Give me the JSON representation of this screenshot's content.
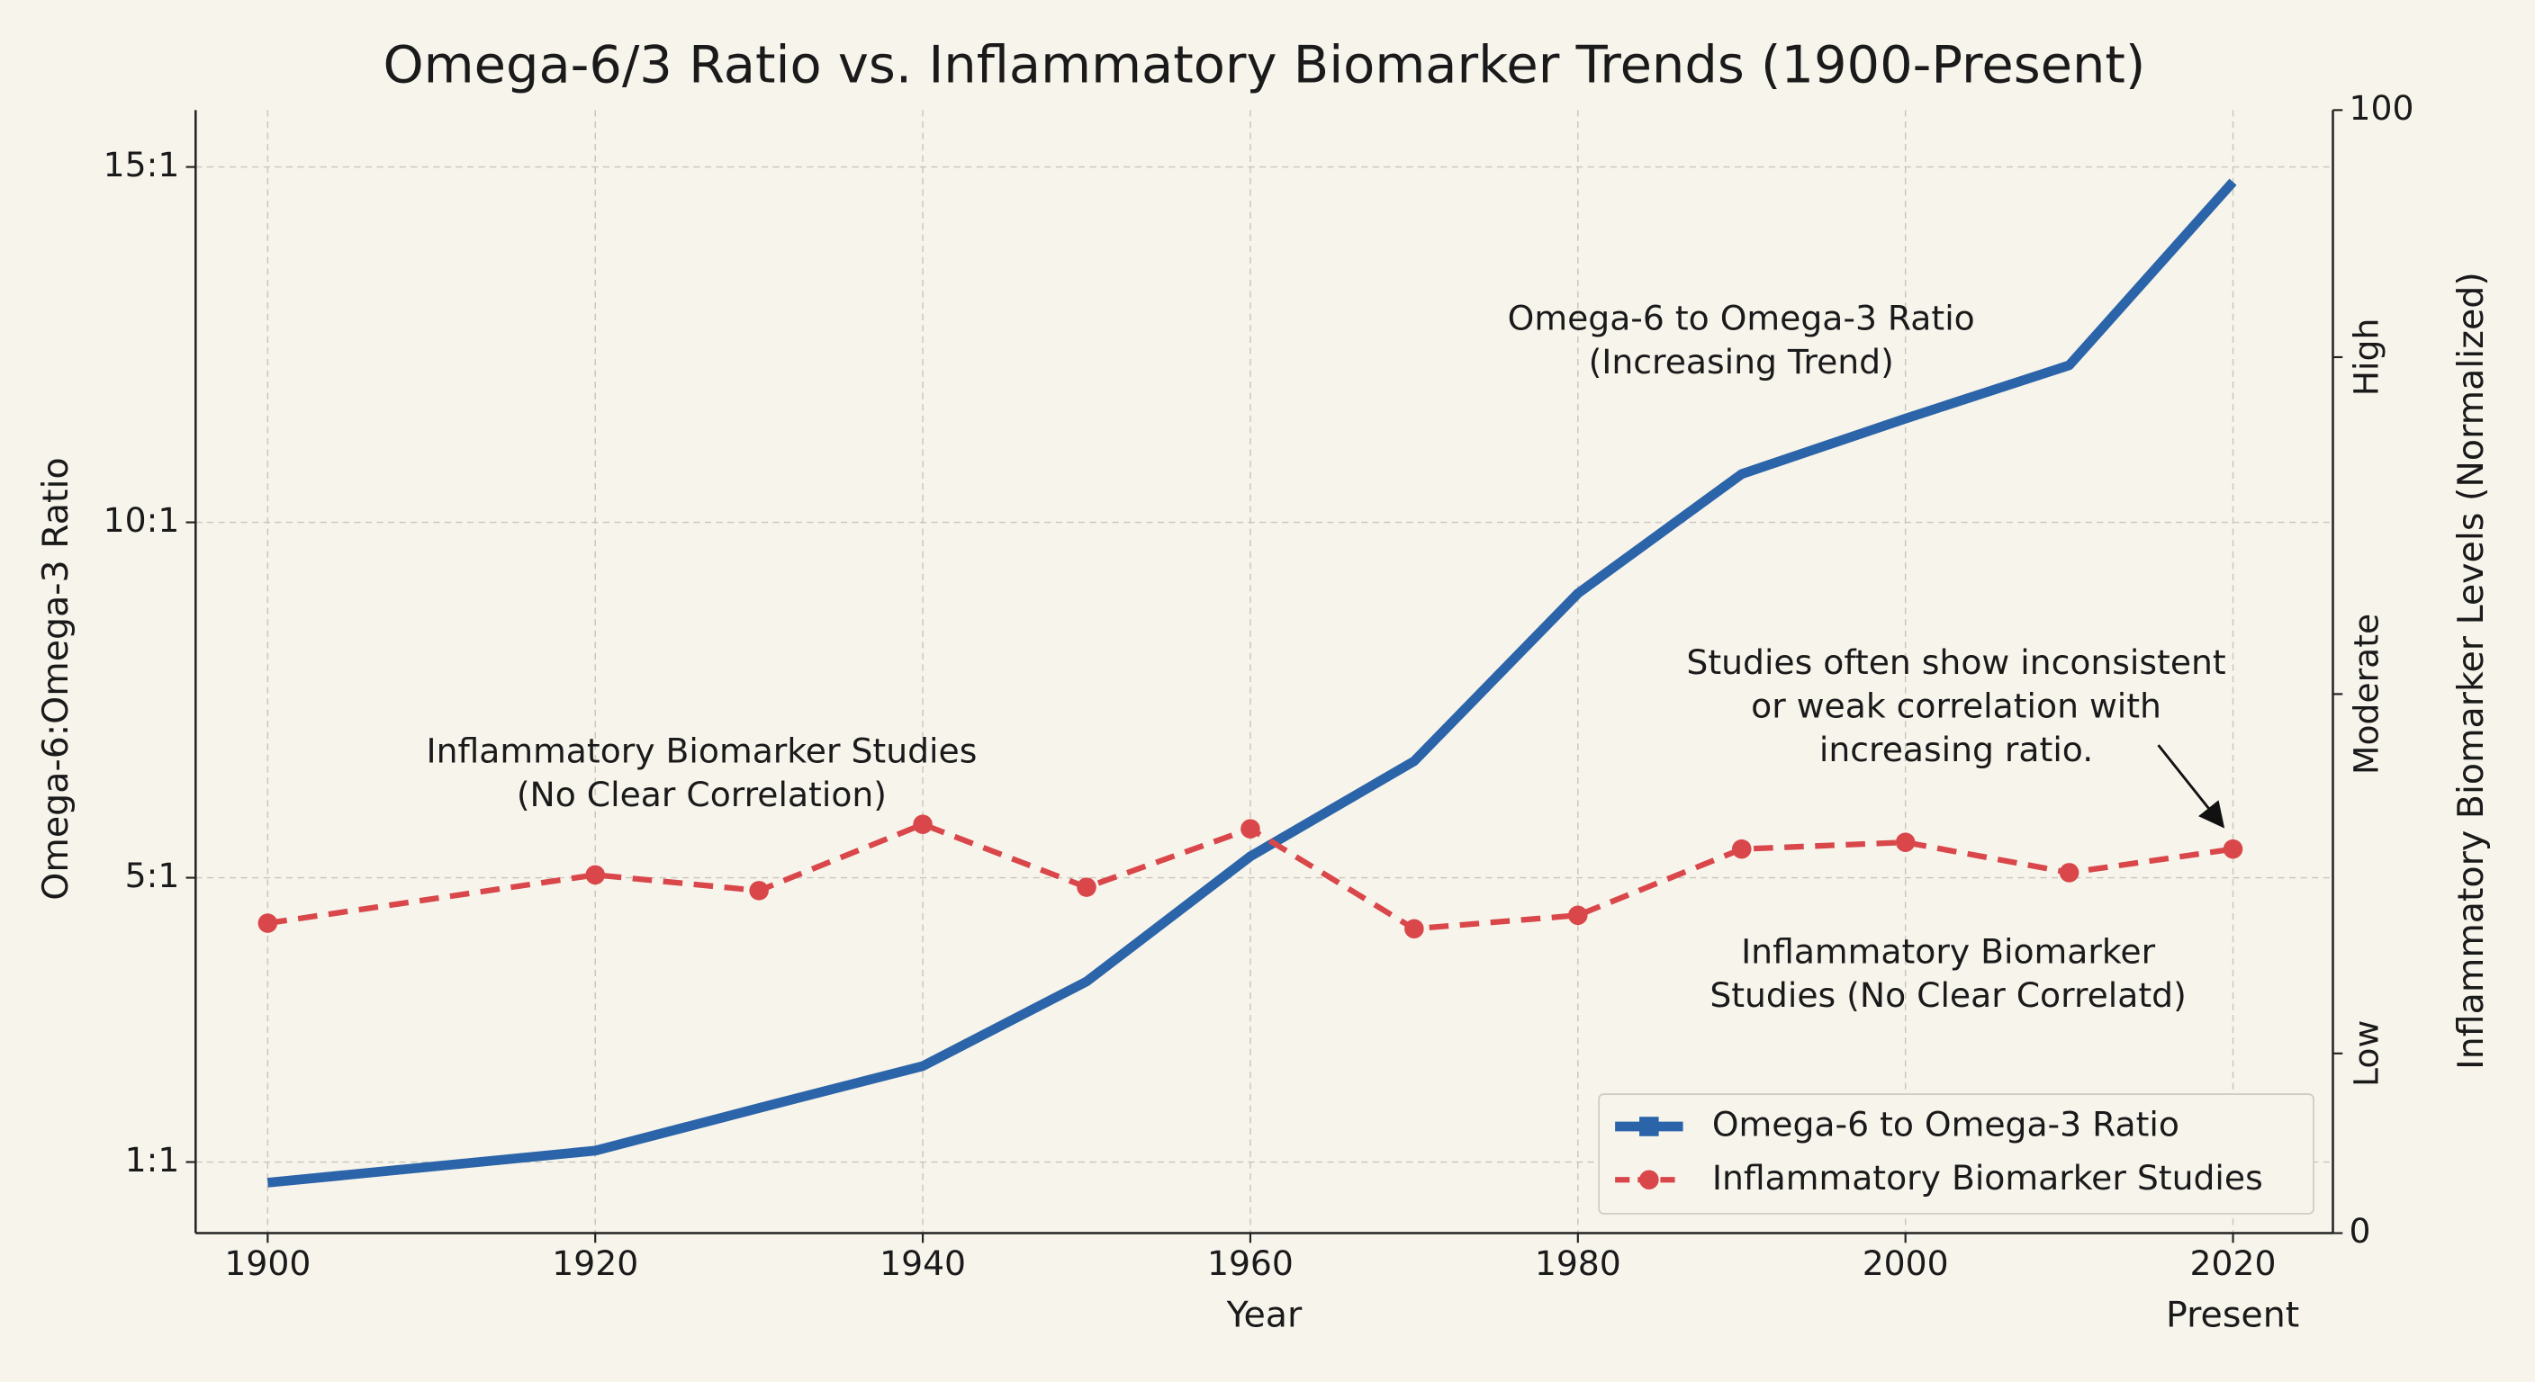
{
  "chart_data": {
    "type": "line",
    "title": "Omega-6/3 Ratio vs. Inflammatory Biomarker Trends (1900-Present)",
    "x_label": "Year",
    "x_extra_label": "Present",
    "y_label": "Omega-6:Omega-3 Ratio",
    "y2_label": "Inflammatory Biomarker Levels (Normalized)",
    "x": [
      1900,
      1920,
      1930,
      1940,
      1950,
      1960,
      1970,
      1980,
      1990,
      2000,
      2010,
      2020
    ],
    "xlim": [
      1895.6,
      2026.1
    ],
    "xticks": [
      1900,
      1920,
      1940,
      1960,
      1980,
      2000,
      2020
    ],
    "ylim": [
      0,
      15.8
    ],
    "yticks": [
      {
        "value": 1,
        "label": "1:1"
      },
      {
        "value": 5,
        "label": "5:1"
      },
      {
        "value": 10,
        "label": "10:1"
      },
      {
        "value": 15,
        "label": "15:1"
      }
    ],
    "y2lim": [
      0,
      100
    ],
    "y2ticks": [
      0,
      {
        "value": 16,
        "label": "Low"
      },
      {
        "value": 48,
        "label": "Moderate"
      },
      {
        "value": 78,
        "label": "High"
      },
      100
    ],
    "grid": true,
    "legend": "lower right",
    "series": [
      {
        "name": "Omega-6 to Omega-3 Ratio",
        "color": "#2b64a8",
        "style": "solid",
        "values": [
          0.71,
          1.16,
          1.76,
          2.35,
          3.54,
          5.3,
          6.64,
          9.0,
          10.68,
          11.46,
          12.21,
          14.79
        ]
      },
      {
        "name": "Inflammatory Biomarker Studies",
        "color": "#d9474a",
        "style": "dashed",
        "axis": "y2",
        "values": [
          27.6,
          31.9,
          30.5,
          36.4,
          30.8,
          36.0,
          27.1,
          28.3,
          34.2,
          34.8,
          32.1,
          34.2
        ]
      }
    ],
    "annotations": [
      {
        "lines": [
          "Omega-6 to Omega-3 Ratio",
          "(Increasing Trend)"
        ]
      },
      {
        "lines": [
          "Inflammatory Biomarker Studies",
          "(No Clear Correlation)"
        ]
      },
      {
        "lines": [
          "Studies often show inconsistent",
          "or weak correlation with",
          "increasing ratio."
        ]
      },
      {
        "lines": [
          "Inflammatory Biomarker",
          "Studies (No Clear Correlatd)"
        ]
      }
    ]
  }
}
